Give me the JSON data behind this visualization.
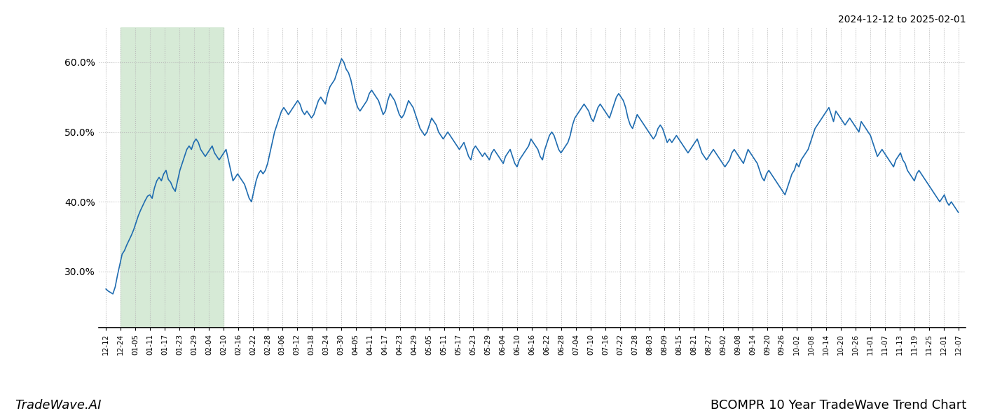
{
  "title_top_right": "2024-12-12 to 2025-02-01",
  "title_bottom_left": "TradeWave.AI",
  "title_bottom_right": "BCOMPR 10 Year TradeWave Trend Chart",
  "highlight_color": "#d6ead6",
  "line_color": "#1f6cb0",
  "line_width": 1.2,
  "background_color": "#ffffff",
  "grid_color": "#bbbbbb",
  "ylim": [
    22.0,
    65.0
  ],
  "yticks": [
    30.0,
    40.0,
    50.0,
    60.0
  ],
  "highlight_start_label": "12-24",
  "highlight_end_label": "02-10",
  "x_labels": [
    "12-12",
    "12-24",
    "01-05",
    "01-11",
    "01-17",
    "01-23",
    "01-29",
    "02-04",
    "02-10",
    "02-16",
    "02-22",
    "02-28",
    "03-06",
    "03-12",
    "03-18",
    "03-24",
    "03-30",
    "04-05",
    "04-11",
    "04-17",
    "04-23",
    "04-29",
    "05-05",
    "05-11",
    "05-17",
    "05-23",
    "05-29",
    "06-04",
    "06-10",
    "06-16",
    "06-22",
    "06-28",
    "07-04",
    "07-10",
    "07-16",
    "07-22",
    "07-28",
    "08-03",
    "08-09",
    "08-15",
    "08-21",
    "08-27",
    "09-02",
    "09-08",
    "09-14",
    "09-20",
    "09-26",
    "10-02",
    "10-08",
    "10-14",
    "10-20",
    "10-26",
    "11-01",
    "11-07",
    "11-13",
    "11-19",
    "11-25",
    "12-01",
    "12-07"
  ],
  "values": [
    27.5,
    27.2,
    27.0,
    26.8,
    27.8,
    29.5,
    31.0,
    32.5,
    33.0,
    33.8,
    34.5,
    35.2,
    36.0,
    37.0,
    38.0,
    38.8,
    39.5,
    40.2,
    40.8,
    41.0,
    40.5,
    42.0,
    43.0,
    43.5,
    43.0,
    44.0,
    44.5,
    43.2,
    42.8,
    42.0,
    41.5,
    43.0,
    44.5,
    45.5,
    46.5,
    47.5,
    48.0,
    47.5,
    48.5,
    49.0,
    48.5,
    47.5,
    47.0,
    46.5,
    47.0,
    47.5,
    48.0,
    47.0,
    46.5,
    46.0,
    46.5,
    47.0,
    47.5,
    46.0,
    44.5,
    43.0,
    43.5,
    44.0,
    43.5,
    43.0,
    42.5,
    41.5,
    40.5,
    40.0,
    41.5,
    43.0,
    44.0,
    44.5,
    44.0,
    44.5,
    45.5,
    47.0,
    48.5,
    50.0,
    51.0,
    52.0,
    53.0,
    53.5,
    53.0,
    52.5,
    53.0,
    53.5,
    54.0,
    54.5,
    54.0,
    53.0,
    52.5,
    53.0,
    52.5,
    52.0,
    52.5,
    53.5,
    54.5,
    55.0,
    54.5,
    54.0,
    55.5,
    56.5,
    57.0,
    57.5,
    58.5,
    59.5,
    60.5,
    60.0,
    59.0,
    58.5,
    57.5,
    56.0,
    54.5,
    53.5,
    53.0,
    53.5,
    54.0,
    54.5,
    55.5,
    56.0,
    55.5,
    55.0,
    54.5,
    53.5,
    52.5,
    53.0,
    54.5,
    55.5,
    55.0,
    54.5,
    53.5,
    52.5,
    52.0,
    52.5,
    53.5,
    54.5,
    54.0,
    53.5,
    52.5,
    51.5,
    50.5,
    50.0,
    49.5,
    50.0,
    51.0,
    52.0,
    51.5,
    51.0,
    50.0,
    49.5,
    49.0,
    49.5,
    50.0,
    49.5,
    49.0,
    48.5,
    48.0,
    47.5,
    48.0,
    48.5,
    47.5,
    46.5,
    46.0,
    47.5,
    48.0,
    47.5,
    47.0,
    46.5,
    47.0,
    46.5,
    46.0,
    47.0,
    47.5,
    47.0,
    46.5,
    46.0,
    45.5,
    46.5,
    47.0,
    47.5,
    46.5,
    45.5,
    45.0,
    46.0,
    46.5,
    47.0,
    47.5,
    48.0,
    49.0,
    48.5,
    48.0,
    47.5,
    46.5,
    46.0,
    47.5,
    48.5,
    49.5,
    50.0,
    49.5,
    48.5,
    47.5,
    47.0,
    47.5,
    48.0,
    48.5,
    49.5,
    51.0,
    52.0,
    52.5,
    53.0,
    53.5,
    54.0,
    53.5,
    53.0,
    52.0,
    51.5,
    52.5,
    53.5,
    54.0,
    53.5,
    53.0,
    52.5,
    52.0,
    53.0,
    54.0,
    55.0,
    55.5,
    55.0,
    54.5,
    53.5,
    52.0,
    51.0,
    50.5,
    51.5,
    52.5,
    52.0,
    51.5,
    51.0,
    50.5,
    50.0,
    49.5,
    49.0,
    49.5,
    50.5,
    51.0,
    50.5,
    49.5,
    48.5,
    49.0,
    48.5,
    49.0,
    49.5,
    49.0,
    48.5,
    48.0,
    47.5,
    47.0,
    47.5,
    48.0,
    48.5,
    49.0,
    48.0,
    47.0,
    46.5,
    46.0,
    46.5,
    47.0,
    47.5,
    47.0,
    46.5,
    46.0,
    45.5,
    45.0,
    45.5,
    46.0,
    47.0,
    47.5,
    47.0,
    46.5,
    46.0,
    45.5,
    46.5,
    47.5,
    47.0,
    46.5,
    46.0,
    45.5,
    44.5,
    43.5,
    43.0,
    44.0,
    44.5,
    44.0,
    43.5,
    43.0,
    42.5,
    42.0,
    41.5,
    41.0,
    42.0,
    43.0,
    44.0,
    44.5,
    45.5,
    45.0,
    46.0,
    46.5,
    47.0,
    47.5,
    48.5,
    49.5,
    50.5,
    51.0,
    51.5,
    52.0,
    52.5,
    53.0,
    53.5,
    52.5,
    51.5,
    53.0,
    52.5,
    52.0,
    51.5,
    51.0,
    51.5,
    52.0,
    51.5,
    51.0,
    50.5,
    50.0,
    51.5,
    51.0,
    50.5,
    50.0,
    49.5,
    48.5,
    47.5,
    46.5,
    47.0,
    47.5,
    47.0,
    46.5,
    46.0,
    45.5,
    45.0,
    46.0,
    46.5,
    47.0,
    46.0,
    45.5,
    44.5,
    44.0,
    43.5,
    43.0,
    44.0,
    44.5,
    44.0,
    43.5,
    43.0,
    42.5,
    42.0,
    41.5,
    41.0,
    40.5,
    40.0,
    40.5,
    41.0,
    40.0,
    39.5,
    40.0,
    39.5,
    39.0,
    38.5
  ]
}
